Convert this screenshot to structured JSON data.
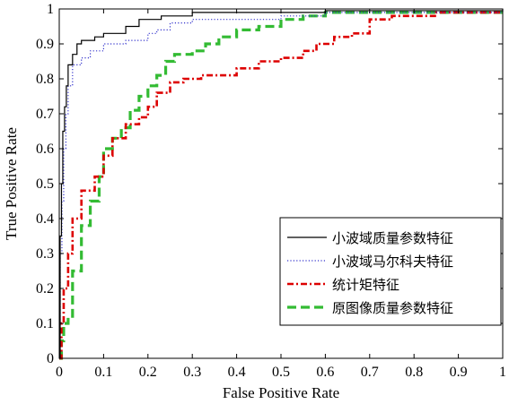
{
  "chart_data": {
    "type": "line",
    "xlabel": "False Positive Rate",
    "ylabel": "True Positive Rate",
    "xlim": [
      0,
      1
    ],
    "ylim": [
      0,
      1
    ],
    "xticks": [
      "0",
      "0.1",
      "0.2",
      "0.3",
      "0.4",
      "0.5",
      "0.6",
      "0.7",
      "0.8",
      "0.9",
      "1"
    ],
    "yticks": [
      "0",
      "0.1",
      "0.2",
      "0.3",
      "0.4",
      "0.5",
      "0.6",
      "0.7",
      "0.8",
      "0.9",
      "1"
    ],
    "grid": false,
    "legend_position": "lower-right",
    "series": [
      {
        "name": "小波域质量参数特征",
        "color": "#000000",
        "line_style": "solid",
        "points": [
          [
            0,
            0
          ],
          [
            0.002,
            0.35
          ],
          [
            0.005,
            0.5
          ],
          [
            0.008,
            0.65
          ],
          [
            0.012,
            0.72
          ],
          [
            0.016,
            0.78
          ],
          [
            0.02,
            0.84
          ],
          [
            0.03,
            0.87
          ],
          [
            0.04,
            0.9
          ],
          [
            0.05,
            0.91
          ],
          [
            0.08,
            0.92
          ],
          [
            0.1,
            0.93
          ],
          [
            0.15,
            0.95
          ],
          [
            0.18,
            0.97
          ],
          [
            0.23,
            0.98
          ],
          [
            0.3,
            0.99
          ],
          [
            0.5,
            0.99
          ],
          [
            0.6,
            0.995
          ],
          [
            1,
            1
          ]
        ]
      },
      {
        "name": "小波域马尔科夫特征",
        "color": "#3333cc",
        "line_style": "dotted",
        "points": [
          [
            0,
            0
          ],
          [
            0.002,
            0.3
          ],
          [
            0.006,
            0.45
          ],
          [
            0.01,
            0.6
          ],
          [
            0.015,
            0.7
          ],
          [
            0.02,
            0.78
          ],
          [
            0.03,
            0.84
          ],
          [
            0.05,
            0.86
          ],
          [
            0.07,
            0.88
          ],
          [
            0.1,
            0.9
          ],
          [
            0.15,
            0.91
          ],
          [
            0.2,
            0.93
          ],
          [
            0.22,
            0.94
          ],
          [
            0.25,
            0.96
          ],
          [
            0.3,
            0.97
          ],
          [
            0.4,
            0.97
          ],
          [
            0.5,
            0.98
          ],
          [
            0.6,
            0.99
          ],
          [
            1,
            1
          ]
        ]
      },
      {
        "name": "统计矩特征",
        "color": "#dd0000",
        "line_style": "dash-dot",
        "points": [
          [
            0,
            0
          ],
          [
            0.005,
            0.1
          ],
          [
            0.01,
            0.2
          ],
          [
            0.02,
            0.3
          ],
          [
            0.03,
            0.4
          ],
          [
            0.05,
            0.48
          ],
          [
            0.08,
            0.52
          ],
          [
            0.1,
            0.58
          ],
          [
            0.12,
            0.63
          ],
          [
            0.15,
            0.67
          ],
          [
            0.18,
            0.69
          ],
          [
            0.2,
            0.72
          ],
          [
            0.22,
            0.76
          ],
          [
            0.25,
            0.79
          ],
          [
            0.28,
            0.8
          ],
          [
            0.32,
            0.81
          ],
          [
            0.35,
            0.81
          ],
          [
            0.4,
            0.83
          ],
          [
            0.45,
            0.85
          ],
          [
            0.5,
            0.86
          ],
          [
            0.55,
            0.88
          ],
          [
            0.58,
            0.9
          ],
          [
            0.62,
            0.92
          ],
          [
            0.66,
            0.93
          ],
          [
            0.7,
            0.97
          ],
          [
            0.75,
            0.98
          ],
          [
            0.85,
            0.99
          ],
          [
            1,
            0.99
          ]
        ]
      },
      {
        "name": "原图像质量参数特征",
        "color": "#33bb33",
        "line_style": "dashed",
        "points": [
          [
            0,
            0
          ],
          [
            0.005,
            0.05
          ],
          [
            0.01,
            0.1
          ],
          [
            0.02,
            0.12
          ],
          [
            0.03,
            0.25
          ],
          [
            0.05,
            0.38
          ],
          [
            0.07,
            0.45
          ],
          [
            0.09,
            0.52
          ],
          [
            0.1,
            0.6
          ],
          [
            0.12,
            0.63
          ],
          [
            0.14,
            0.66
          ],
          [
            0.16,
            0.71
          ],
          [
            0.18,
            0.75
          ],
          [
            0.2,
            0.78
          ],
          [
            0.22,
            0.81
          ],
          [
            0.24,
            0.85
          ],
          [
            0.26,
            0.87
          ],
          [
            0.3,
            0.88
          ],
          [
            0.33,
            0.9
          ],
          [
            0.36,
            0.92
          ],
          [
            0.4,
            0.94
          ],
          [
            0.45,
            0.95
          ],
          [
            0.5,
            0.97
          ],
          [
            0.55,
            0.98
          ],
          [
            0.6,
            0.99
          ],
          [
            1,
            0.99
          ]
        ]
      }
    ]
  }
}
